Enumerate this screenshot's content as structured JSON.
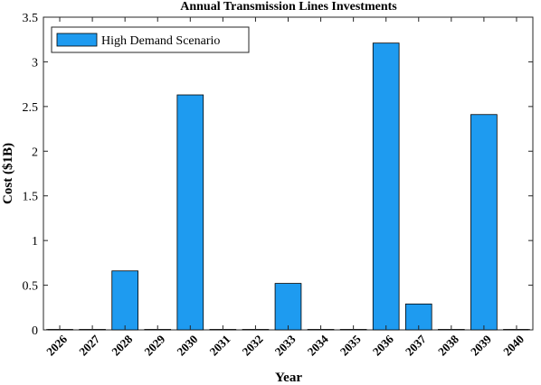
{
  "chart_data": {
    "type": "bar",
    "title": "Annual Transmission Lines Investments",
    "xlabel": "Year",
    "ylabel": "Cost ($1B)",
    "ylim": [
      0,
      3.5
    ],
    "yticks": [
      0,
      0.5,
      1,
      1.5,
      2,
      2.5,
      3,
      3.5
    ],
    "ytick_labels": [
      "0",
      "0.5",
      "1",
      "1.5",
      "2",
      "2.5",
      "3",
      "3.5"
    ],
    "categories": [
      "2026",
      "2027",
      "2028",
      "2029",
      "2030",
      "2031",
      "2032",
      "2033",
      "2034",
      "2035",
      "2036",
      "2037",
      "2038",
      "2039",
      "2040"
    ],
    "series": [
      {
        "name": "High Demand Scenario",
        "color": "#1E9BF0",
        "values": [
          0,
          0,
          0.66,
          0,
          2.63,
          0,
          0,
          0.52,
          0,
          0,
          3.21,
          0.29,
          0,
          2.41,
          0
        ]
      }
    ],
    "legend": {
      "position": "top-left"
    },
    "grid": false
  }
}
